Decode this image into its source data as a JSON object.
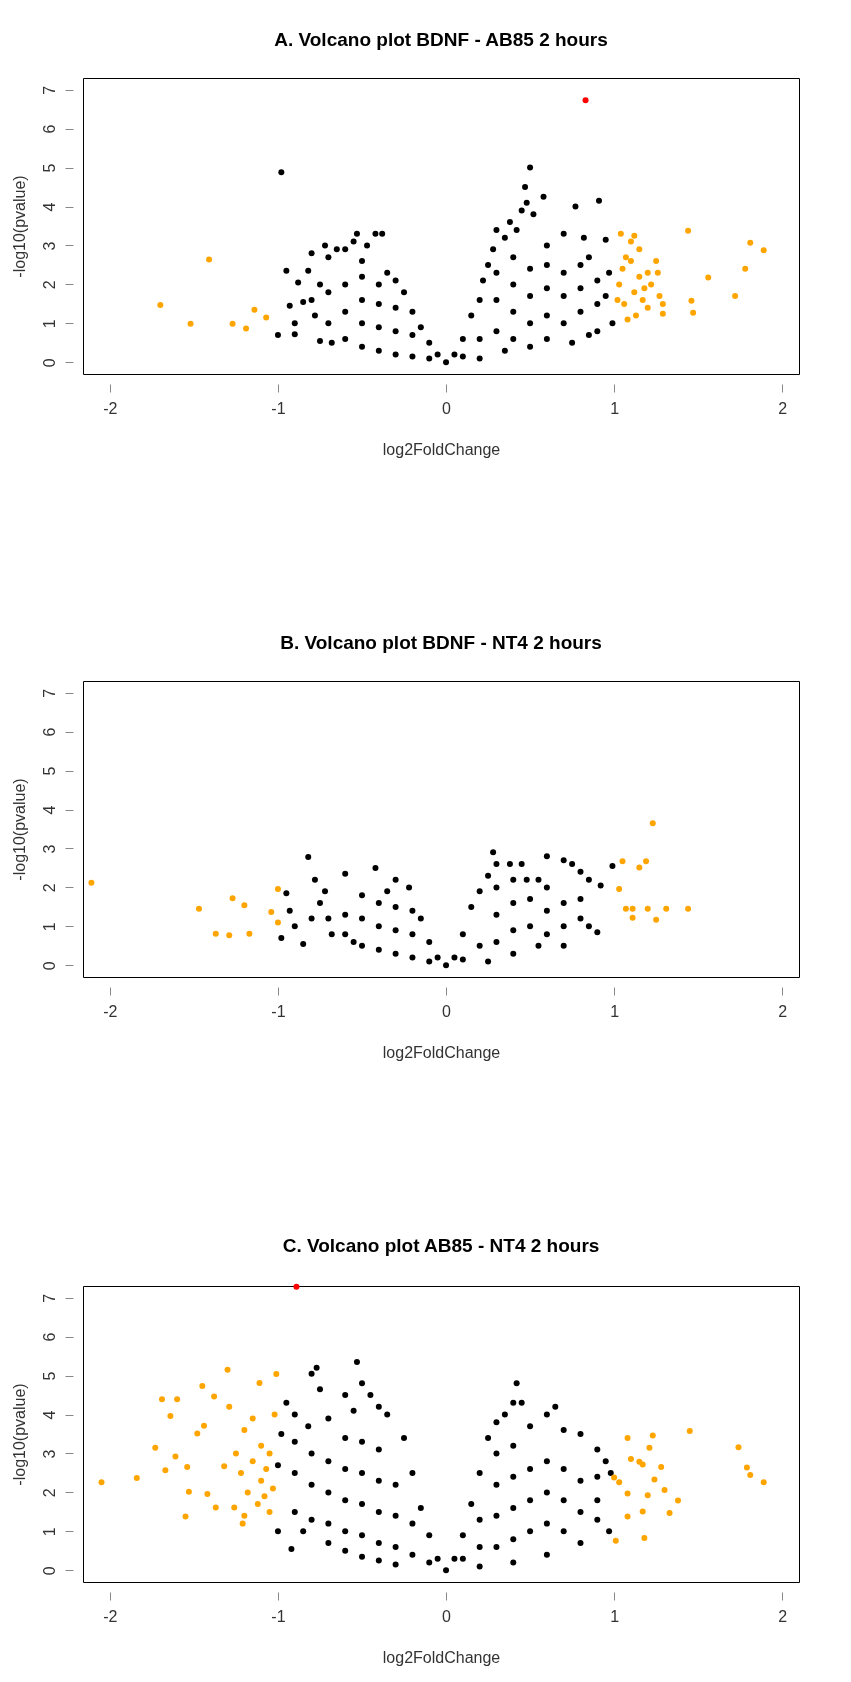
{
  "chart_data": [
    {
      "type": "scatter",
      "title": "A. Volcano plot BDNF - AB85 2 hours",
      "xlabel": "log2FoldChange",
      "ylabel": "-log10(pvalue)",
      "xlim": [
        -2.16,
        2.1
      ],
      "ylim": [
        -0.3,
        7.3
      ],
      "xticks": [
        -2,
        -1,
        0,
        1,
        2
      ],
      "yticks": [
        0,
        1,
        2,
        3,
        4,
        5,
        6,
        7
      ],
      "grid": false,
      "marker": "circle",
      "series": [
        {
          "color": "#000000",
          "x": [
            -1.0,
            -0.95,
            -0.93,
            -0.9,
            -0.88,
            -0.85,
            -0.82,
            -0.8,
            -0.78,
            -0.75,
            -0.75,
            -0.72,
            -0.7,
            -0.68,
            -0.65,
            -0.6,
            -0.55,
            -0.53,
            -0.5,
            -0.47,
            -0.42,
            -0.38,
            -0.35,
            -0.3,
            -0.25,
            -0.2,
            -0.15,
            -0.1,
            -0.05,
            0,
            -0.9,
            -0.8,
            -0.7,
            -0.7,
            -0.6,
            -0.6,
            -0.6,
            -0.5,
            -0.5,
            -0.5,
            -0.5,
            -0.4,
            -0.4,
            -0.4,
            -0.4,
            -0.3,
            -0.3,
            -0.3,
            -0.2,
            -0.2,
            -0.1,
            -0.98,
            0.05,
            0.1,
            0.15,
            0.2,
            0.22,
            0.25,
            0.28,
            0.3,
            0.35,
            0.38,
            0.42,
            0.45,
            0.47,
            0.48,
            0.5,
            0.52,
            0.58,
            0.6,
            0.7,
            0.77,
            0.82,
            0.85,
            0.91,
            0.95,
            0.97,
            0.99,
            0.9,
            0.85,
            0.75,
            0.6,
            0.5,
            0.35,
            0.2,
            0.3,
            0.3,
            0.3,
            0.4,
            0.4,
            0.4,
            0.4,
            0.5,
            0.5,
            0.5,
            0.6,
            0.6,
            0.6,
            0.7,
            0.7,
            0.7,
            0.8,
            0.8,
            0.8,
            0.9,
            0.9,
            0.95,
            0.2,
            0.1
          ],
          "values": [
            0.7,
            2.35,
            1.45,
            0.72,
            2.05,
            1.55,
            2.35,
            2.8,
            1.2,
            2.0,
            0.55,
            3.0,
            2.7,
            0.5,
            2.9,
            2.9,
            3.1,
            3.3,
            2.6,
            3.0,
            3.3,
            3.3,
            2.3,
            2.1,
            1.8,
            1.3,
            0.9,
            0.5,
            0.2,
            0.0,
            1.0,
            1.6,
            1.0,
            1.8,
            0.6,
            1.3,
            2.0,
            0.4,
            1.0,
            1.6,
            2.2,
            0.3,
            0.9,
            1.5,
            2.0,
            0.2,
            0.8,
            1.4,
            0.15,
            0.7,
            0.1,
            4.88,
            0.2,
            0.6,
            1.2,
            1.6,
            2.1,
            2.5,
            2.9,
            3.4,
            3.2,
            3.6,
            3.4,
            3.9,
            4.5,
            4.1,
            5.0,
            3.8,
            4.25,
            3.0,
            3.3,
            4.0,
            3.2,
            2.7,
            4.15,
            3.15,
            2.3,
            1.0,
            0.8,
            0.7,
            0.5,
            0.6,
            0.4,
            0.3,
            0.1,
            0.8,
            1.6,
            2.3,
            0.6,
            1.3,
            2.0,
            2.7,
            1.0,
            1.7,
            2.4,
            1.2,
            1.9,
            2.5,
            1.0,
            1.7,
            2.3,
            1.3,
            1.9,
            2.5,
            1.5,
            2.1,
            1.7,
            0.6,
            0.15
          ]
        },
        {
          "color": "#ffa500",
          "x": [
            -1.7,
            -1.52,
            -1.41,
            -1.27,
            -1.19,
            -1.14,
            -1.07,
            1.44,
            1.46,
            1.47,
            1.56,
            1.72,
            1.78,
            1.81,
            1.89,
            1.04,
            1.05,
            1.03,
            1.06,
            1.08,
            1.1,
            1.1,
            1.12,
            1.13,
            1.15,
            1.15,
            1.17,
            1.2,
            1.2,
            1.22,
            1.25,
            1.26,
            1.27,
            1.29,
            1.29,
            1.12,
            1.02,
            1.07,
            1.18
          ],
          "values": [
            1.47,
            0.99,
            2.64,
            0.99,
            0.87,
            1.35,
            1.15,
            3.38,
            1.58,
            1.27,
            2.18,
            1.7,
            2.4,
            3.07,
            2.88,
            3.3,
            2.4,
            2.0,
            1.5,
            1.1,
            3.1,
            2.6,
            1.8,
            1.2,
            2.9,
            2.2,
            1.6,
            2.3,
            1.4,
            2.0,
            2.6,
            2.3,
            1.7,
            1.25,
            1.5,
            3.25,
            1.6,
            2.7,
            1.9
          ]
        },
        {
          "color": "#ff0000",
          "x": [
            0.83
          ],
          "values": [
            6.73
          ]
        }
      ]
    },
    {
      "type": "scatter",
      "title": "B. Volcano plot BDNF - NT4 2 hours",
      "xlabel": "log2FoldChange",
      "ylabel": "-log10(pvalue)",
      "xlim": [
        -2.16,
        2.1
      ],
      "ylim": [
        -0.3,
        7.3
      ],
      "xticks": [
        -2,
        -1,
        0,
        1,
        2
      ],
      "yticks": [
        0,
        1,
        2,
        3,
        4,
        5,
        6,
        7
      ],
      "grid": false,
      "marker": "circle",
      "series": [
        {
          "color": "#000000",
          "x": [
            -0.98,
            -0.95,
            -0.93,
            -0.9,
            -0.85,
            -0.82,
            -0.8,
            -0.78,
            -0.75,
            -0.72,
            -0.68,
            -0.6,
            -0.6,
            -0.55,
            -0.5,
            -0.42,
            -0.35,
            -0.3,
            -0.22,
            -0.15,
            -0.1,
            -0.05,
            0,
            -0.7,
            -0.6,
            -0.5,
            -0.5,
            -0.4,
            -0.4,
            -0.4,
            -0.3,
            -0.3,
            -0.3,
            -0.2,
            -0.2,
            -0.2,
            -0.1,
            0.05,
            0.1,
            0.15,
            0.2,
            0.25,
            0.28,
            0.3,
            0.38,
            0.45,
            0.48,
            0.55,
            0.6,
            0.7,
            0.75,
            0.8,
            0.85,
            0.92,
            0.99,
            0.9,
            0.85,
            0.7,
            0.55,
            0.4,
            0.25,
            0.3,
            0.3,
            0.3,
            0.4,
            0.4,
            0.4,
            0.5,
            0.5,
            0.6,
            0.6,
            0.6,
            0.7,
            0.7,
            0.8,
            0.8,
            0.2,
            0.1
          ],
          "values": [
            0.7,
            1.85,
            1.4,
            1.0,
            0.55,
            2.78,
            1.2,
            2.2,
            1.6,
            1.9,
            0.8,
            2.35,
            1.3,
            0.6,
            1.8,
            2.5,
            1.9,
            2.2,
            2.0,
            1.2,
            0.6,
            0.2,
            0.0,
            1.2,
            0.8,
            0.5,
            1.2,
            0.4,
            1.0,
            1.6,
            0.3,
            0.9,
            1.5,
            0.2,
            0.8,
            1.4,
            0.1,
            0.2,
            0.8,
            1.5,
            1.9,
            2.3,
            2.9,
            2.6,
            2.6,
            2.6,
            2.2,
            2.2,
            2.8,
            2.7,
            2.6,
            2.4,
            2.2,
            2.05,
            2.55,
            0.85,
            1.0,
            0.5,
            0.5,
            0.3,
            0.1,
            0.6,
            1.3,
            2.0,
            0.9,
            1.6,
            2.2,
            1.0,
            1.7,
            0.8,
            1.4,
            2.0,
            1.0,
            1.6,
            1.2,
            1.7,
            0.5,
            0.15
          ]
        },
        {
          "color": "#ffa500",
          "x": [
            -2.11,
            -1.47,
            -1.37,
            -1.29,
            -1.27,
            -1.2,
            -1.17,
            -1.04,
            -1.0,
            -1.0,
            1.03,
            1.05,
            1.07,
            1.11,
            1.11,
            1.15,
            1.19,
            1.2,
            1.23,
            1.25,
            1.31,
            1.44
          ],
          "values": [
            2.12,
            1.45,
            0.81,
            0.77,
            1.72,
            1.54,
            0.81,
            1.37,
            1.96,
            1.1,
            1.96,
            2.67,
            1.45,
            1.45,
            1.22,
            2.51,
            2.67,
            1.45,
            3.65,
            1.17,
            1.45,
            1.45
          ]
        }
      ]
    },
    {
      "type": "scatter",
      "title": "C. Volcano plot AB85 - NT4 2 hours",
      "xlabel": "log2FoldChange",
      "ylabel": "-log10(pvalue)",
      "xlim": [
        -2.16,
        2.1
      ],
      "ylim": [
        -0.3,
        7.3
      ],
      "xticks": [
        -2,
        -1,
        0,
        1,
        2
      ],
      "yticks": [
        0,
        1,
        2,
        3,
        4,
        5,
        6,
        7
      ],
      "grid": false,
      "marker": "circle",
      "series": [
        {
          "color": "#000000",
          "x": [
            -1.0,
            -1.0,
            -0.98,
            -0.95,
            -0.92,
            -0.9,
            -0.85,
            -0.82,
            -0.8,
            -0.77,
            -0.75,
            -0.7,
            -0.7,
            -0.6,
            -0.55,
            -0.53,
            -0.5,
            -0.45,
            -0.4,
            -0.35,
            -0.25,
            -0.2,
            -0.15,
            -0.1,
            -0.05,
            0,
            -0.5,
            -0.4,
            -0.3,
            -0.6,
            -0.9,
            -0.9,
            -0.9,
            -0.8,
            -0.8,
            -0.8,
            -0.7,
            -0.7,
            -0.7,
            -0.6,
            -0.6,
            -0.6,
            -0.6,
            -0.5,
            -0.5,
            -0.5,
            -0.5,
            -0.4,
            -0.4,
            -0.4,
            -0.4,
            -0.3,
            -0.3,
            -0.3,
            -0.2,
            -0.2,
            -0.1,
            0.05,
            0.1,
            0.15,
            0.2,
            0.25,
            0.3,
            0.35,
            0.4,
            0.42,
            0.45,
            0.5,
            0.6,
            0.65,
            0.7,
            0.8,
            0.9,
            0.95,
            0.98,
            0.97,
            0.9,
            0.8,
            0.6,
            0.4,
            0.2,
            0.3,
            0.3,
            0.3,
            0.3,
            0.4,
            0.4,
            0.4,
            0.4,
            0.5,
            0.5,
            0.5,
            0.6,
            0.6,
            0.6,
            0.7,
            0.7,
            0.7,
            0.8,
            0.8,
            0.9,
            0.9,
            0.2,
            0.2,
            0.1
          ],
          "values": [
            1.0,
            2.7,
            3.5,
            4.3,
            0.55,
            4.0,
            1.0,
            3.7,
            5.05,
            5.2,
            4.65,
            3.9,
            0.7,
            4.5,
            4.1,
            5.35,
            4.8,
            4.5,
            4.2,
            4.0,
            3.4,
            2.5,
            1.6,
            0.9,
            0.3,
            0.0,
            0.35,
            0.25,
            0.15,
            0.5,
            1.5,
            2.5,
            3.3,
            1.3,
            2.2,
            3.0,
            1.2,
            2.0,
            2.8,
            1.0,
            1.8,
            2.6,
            3.4,
            0.9,
            1.7,
            2.5,
            3.3,
            0.7,
            1.5,
            2.3,
            3.1,
            0.6,
            1.4,
            2.2,
            0.4,
            1.2,
            0.2,
            0.3,
            0.9,
            1.7,
            2.5,
            3.4,
            3.8,
            4.0,
            4.3,
            4.8,
            4.3,
            3.7,
            4.0,
            4.2,
            3.6,
            3.5,
            3.1,
            2.8,
            2.5,
            1.0,
            1.3,
            0.7,
            0.4,
            0.2,
            0.1,
            0.6,
            1.4,
            2.2,
            3.0,
            0.8,
            1.6,
            2.4,
            3.2,
            1.0,
            1.8,
            2.6,
            1.2,
            2.0,
            2.8,
            1.0,
            1.8,
            2.6,
            1.5,
            2.3,
            1.8,
            2.4,
            0.6,
            1.3,
            0.3
          ]
        },
        {
          "color": "#ffa500",
          "x": [
            -2.05,
            -1.84,
            -1.73,
            -1.69,
            -1.67,
            -1.64,
            -1.61,
            -1.6,
            -1.55,
            -1.54,
            -1.53,
            -1.48,
            -1.45,
            -1.44,
            -1.42,
            -1.38,
            -1.37,
            -1.32,
            -1.3,
            -1.29,
            -1.26,
            -1.21,
            -1.11,
            -1.01,
            -1.25,
            -1.22,
            -1.2,
            -1.18,
            -1.15,
            -1.15,
            -1.12,
            -1.1,
            -1.1,
            -1.07,
            -1.05,
            -1.05,
            -1.03,
            -1.02,
            -1.08,
            -1.2,
            1.0,
            1.01,
            1.03,
            1.08,
            1.08,
            1.08,
            1.1,
            1.15,
            1.17,
            1.17,
            1.18,
            1.2,
            1.21,
            1.23,
            1.24,
            1.28,
            1.3,
            1.33,
            1.38,
            1.45,
            1.74,
            1.79,
            1.81,
            1.89
          ],
          "values": [
            2.26,
            2.37,
            3.15,
            4.39,
            2.57,
            3.96,
            2.92,
            4.39,
            1.38,
            2.65,
            2.02,
            3.51,
            4.73,
            3.71,
            1.96,
            4.46,
            1.61,
            2.67,
            5.15,
            4.2,
            1.61,
            1.2,
            4.81,
            5.04,
            3.0,
            2.5,
            3.6,
            2.0,
            2.8,
            3.9,
            1.7,
            2.3,
            3.2,
            2.6,
            1.5,
            3.0,
            2.1,
            4.0,
            1.9,
            1.4,
            2.38,
            0.76,
            2.26,
            3.4,
            1.97,
            1.38,
            2.86,
            2.79,
            2.72,
            1.51,
            0.83,
            1.93,
            3.15,
            3.46,
            2.33,
            2.65,
            2.06,
            1.47,
            1.79,
            3.58,
            3.16,
            2.64,
            2.45,
            2.26
          ]
        },
        {
          "color": "#ff0000",
          "x": [
            -0.89
          ],
          "values": [
            7.28
          ]
        }
      ]
    }
  ]
}
